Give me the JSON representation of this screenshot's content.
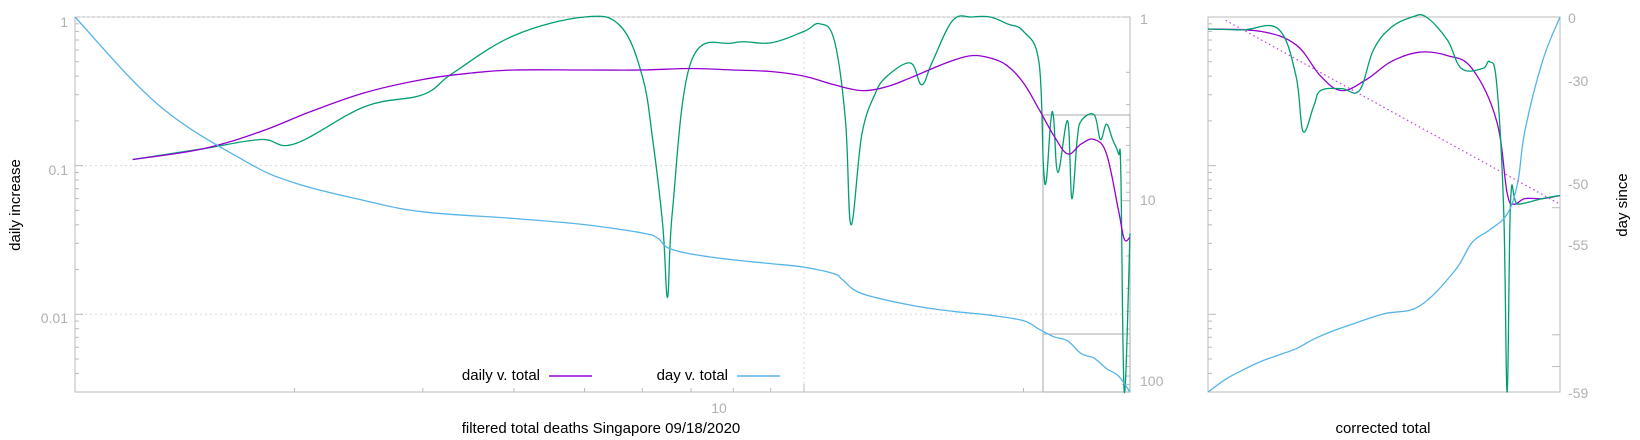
{
  "colors": {
    "daily_v_total": "#9400d3",
    "day_v_total": "#56b4e9",
    "raw_daily": "#009e73",
    "fit_dotted": "#c040e0",
    "frame": "#bbbbbb",
    "grid": "#d8d8d8",
    "tick_text": "#b0b0b0"
  },
  "chart_data": [
    {
      "type": "line",
      "title": "",
      "xlabel": "filtered total deaths Singapore 09/18/2020",
      "ylabel": "daily increase",
      "y2label": "",
      "xscale": "log",
      "yscale": "log",
      "y2scale": "log",
      "xlim": [
        1,
        28
      ],
      "ylim": [
        0.003,
        1
      ],
      "y2lim": [
        1,
        110
      ],
      "x_ticks": [
        "10"
      ],
      "y_ticks": [
        "1",
        "0.1",
        "0.01"
      ],
      "y2_ticks": [
        "1",
        "10",
        "100"
      ],
      "grid": true,
      "legend_position": "bottom-center",
      "series": [
        {
          "name": "daily v. total",
          "axis": "y",
          "x": [
            1.2,
            1.5,
            1.8,
            2.1,
            2.5,
            3,
            3.5,
            4,
            5,
            6,
            7,
            8,
            9,
            10,
            11,
            12,
            13,
            14,
            15,
            16,
            17,
            18,
            19,
            20,
            21,
            22,
            23,
            24,
            25,
            26,
            27,
            27.5,
            28
          ],
          "values": [
            0.11,
            0.13,
            0.17,
            0.23,
            0.31,
            0.38,
            0.42,
            0.44,
            0.44,
            0.44,
            0.45,
            0.44,
            0.43,
            0.4,
            0.35,
            0.32,
            0.34,
            0.39,
            0.45,
            0.51,
            0.55,
            0.53,
            0.47,
            0.36,
            0.24,
            0.16,
            0.12,
            0.14,
            0.15,
            0.12,
            0.05,
            0.032,
            0.033
          ]
        },
        {
          "name": "day v. total",
          "axis": "y2",
          "x": [
            1,
            1.3,
            1.7,
            2,
            2.5,
            3,
            4,
            5,
            6,
            6.3,
            6.5,
            7,
            8,
            9,
            10,
            11,
            11.3,
            12,
            14,
            16,
            18,
            20,
            21,
            22,
            23,
            24,
            25,
            26,
            27,
            28
          ],
          "values": [
            1,
            3,
            6,
            8,
            10,
            11.5,
            12.5,
            13.5,
            15,
            16,
            18,
            19.5,
            21,
            22,
            23,
            25,
            27,
            32,
            37,
            40,
            42,
            45,
            50,
            55,
            58,
            68,
            72,
            82,
            90,
            110
          ]
        },
        {
          "name": "",
          "axis": "y",
          "x": [
            1.2,
            1.5,
            1.8,
            2,
            2.5,
            3,
            3.3,
            4,
            5,
            5.6,
            6,
            6.2,
            6.4,
            6.5,
            6.6,
            7,
            8,
            9,
            10,
            10.5,
            11,
            11.4,
            11.6,
            12,
            12.5,
            13,
            14,
            14.5,
            15,
            16,
            17,
            18,
            19,
            20,
            21,
            21.3,
            21.5,
            21.8,
            22,
            22.3,
            23,
            23.3,
            23.7,
            24,
            25,
            25.5,
            26,
            26.5,
            27,
            27.2,
            27.5,
            28
          ],
          "values": [
            0.11,
            0.13,
            0.15,
            0.14,
            0.25,
            0.3,
            0.42,
            0.75,
            1.0,
            0.87,
            0.4,
            0.15,
            0.04,
            0.013,
            0.05,
            0.5,
            0.67,
            0.67,
            0.8,
            0.9,
            0.7,
            0.2,
            0.04,
            0.16,
            0.3,
            0.4,
            0.49,
            0.35,
            0.5,
            0.95,
            1.05,
            1.0,
            0.9,
            0.8,
            0.5,
            0.1,
            0.08,
            0.2,
            0.21,
            0.09,
            0.2,
            0.06,
            0.15,
            0.2,
            0.22,
            0.15,
            0.19,
            0.15,
            0.12,
            0.09,
            0.003,
            0.035
          ]
        }
      ],
      "annotations": [
        "rectangle marking zoom region near the right end of the x axis"
      ]
    },
    {
      "type": "line",
      "title": "",
      "xlabel": "corrected total",
      "ylabel": "",
      "y2label": "day since",
      "xlim": [
        0,
        1
      ],
      "ylim": [
        0.003,
        1
      ],
      "y2lim": [
        -59,
        0
      ],
      "y2_ticks": [
        "0",
        "-30",
        "-50",
        "-55",
        "-59"
      ],
      "grid": false,
      "series": [
        {
          "name": "",
          "axis": "y",
          "x": [
            0,
            0.15,
            0.25,
            0.32,
            0.38,
            0.45,
            0.52,
            0.6,
            0.68,
            0.75,
            0.82,
            0.85,
            0.87,
            0.9,
            0.95,
            1.0
          ],
          "values": [
            0.83,
            0.8,
            0.65,
            0.4,
            0.32,
            0.38,
            0.5,
            0.58,
            0.55,
            0.45,
            0.2,
            0.065,
            0.055,
            0.06,
            0.06,
            0.063
          ]
        },
        {
          "name": "",
          "axis": "y",
          "x": [
            0,
            0.1,
            0.2,
            0.25,
            0.27,
            0.3,
            0.32,
            0.38,
            0.43,
            0.47,
            0.52,
            0.58,
            0.62,
            0.68,
            0.72,
            0.78,
            0.8,
            0.82,
            0.84,
            0.85,
            0.86,
            0.88,
            0.95,
            1.0
          ],
          "values": [
            0.83,
            0.82,
            0.83,
            0.4,
            0.17,
            0.25,
            0.32,
            0.33,
            0.32,
            0.6,
            0.85,
            1.0,
            1.02,
            0.7,
            0.45,
            0.45,
            0.5,
            0.36,
            0.05,
            0.003,
            0.06,
            0.055,
            0.06,
            0.063
          ]
        },
        {
          "name": "",
          "axis": "y2",
          "x": [
            0,
            0.05,
            0.1,
            0.15,
            0.2,
            0.25,
            0.3,
            0.35,
            0.4,
            0.5,
            0.6,
            0.7,
            0.75,
            0.8,
            0.85,
            0.88,
            0.9,
            0.95,
            1.0
          ],
          "values": [
            -59,
            -57,
            -55.5,
            -54.2,
            -53.2,
            -52.2,
            -50.7,
            -49.5,
            -48.5,
            -46.7,
            -45.5,
            -40,
            -35.5,
            -33.5,
            -31,
            -26,
            -18,
            -7,
            0
          ]
        },
        {
          "name": "",
          "axis": "y",
          "style": "dotted",
          "x": [
            0.05,
            1.0
          ],
          "values": [
            0.95,
            0.055
          ]
        }
      ]
    }
  ],
  "legend": [
    {
      "label": "daily v. total",
      "color": "#9400d3"
    },
    {
      "label": "day v. total",
      "color": "#56b4e9"
    }
  ]
}
